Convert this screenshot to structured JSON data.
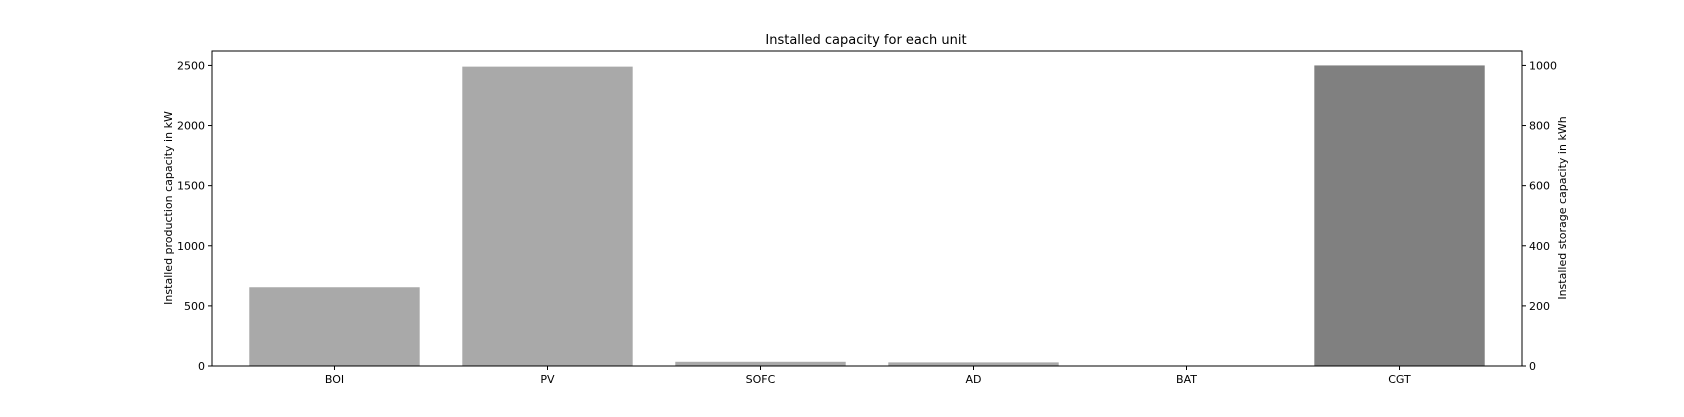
{
  "chart_data": {
    "type": "bar",
    "title": "Installed capacity for each unit",
    "ylabel_left": "Installed production capacity in kW",
    "ylabel_right": "Installed storage capacity in kWh",
    "categories": [
      "BOI",
      "PV",
      "SOFC",
      "AD",
      "BAT",
      "CGT"
    ],
    "series": [
      {
        "axis": "left",
        "color": "#a9a9a9",
        "values": [
          655,
          2490,
          35,
          30,
          0,
          0
        ]
      },
      {
        "axis": "right",
        "color": "#808080",
        "values": [
          0,
          0,
          0,
          0,
          0,
          1000
        ]
      }
    ],
    "ylim_left": [
      0,
      2620
    ],
    "yticks_left": [
      0,
      500,
      1000,
      1500,
      2000,
      2500
    ],
    "ylim_right": [
      0,
      1048
    ],
    "yticks_right": [
      0,
      200,
      400,
      600,
      800,
      1000
    ],
    "grid": false,
    "legend": "none"
  }
}
